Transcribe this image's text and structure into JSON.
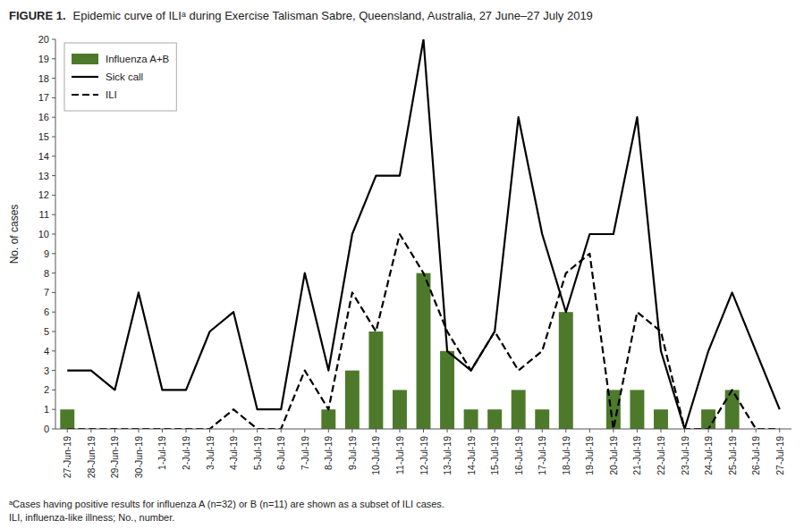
{
  "chart_data": {
    "type": "bar",
    "title": "FIGURE 1.",
    "subtitle": "Epidemic curve of ILIᵃ during Exercise Talisman Sabre, Queensland, Australia, 27 June–27 July 2019",
    "annotations": [
      "ᵃCases having positive results for influenza A (n=32) or B (n=11) are shown as a subset of ILI cases.",
      "ILI, influenza-like illness; No., number."
    ],
    "ylabel": "No. of cases",
    "categories": [
      "27-Jun-19",
      "28-Jun-19",
      "29-Jun-19",
      "30-Jun-19",
      "1-Jul-19",
      "2-Jul-19",
      "3-Jul-19",
      "4-Jul-19",
      "5-Jul-19",
      "6-Jul-19",
      "7-Jul-19",
      "8-Jul-19",
      "9-Jul-19",
      "10-Jul-19",
      "11-Jul-19",
      "12-Jul-19",
      "13-Jul-19",
      "14-Jul-19",
      "15-Jul-19",
      "16-Jul-19",
      "17-Jul-19",
      "18-Jul-19",
      "19-Jul-19",
      "20-Jul-19",
      "21-Jul-19",
      "22-Jul-19",
      "23-Jul-19",
      "24-Jul-19",
      "25-Jul-19",
      "26-Jul-19",
      "27-Jul-19"
    ],
    "series": [
      {
        "name": "Influenza A+B",
        "type": "bar",
        "color": "#4d7a2a",
        "values": [
          1,
          0,
          0,
          0,
          0,
          0,
          0,
          0,
          0,
          0,
          0,
          1,
          3,
          5,
          2,
          8,
          4,
          1,
          1,
          2,
          1,
          6,
          0,
          2,
          2,
          1,
          0,
          1,
          2,
          0,
          0
        ]
      },
      {
        "name": "Sick call",
        "type": "line",
        "color": "#000000",
        "line_style": "solid",
        "values": [
          3,
          3,
          2,
          7,
          2,
          2,
          5,
          6,
          1,
          1,
          8,
          3,
          10,
          13,
          13,
          20,
          4,
          3,
          5,
          16,
          10,
          6,
          10,
          10,
          16,
          4,
          0,
          4,
          7,
          4,
          1
        ]
      },
      {
        "name": "ILI",
        "type": "line",
        "color": "#000000",
        "line_style": "dashed",
        "values": [
          0,
          0,
          0,
          0,
          0,
          0,
          0,
          1,
          0,
          0,
          3,
          1,
          7,
          5,
          10,
          8,
          5,
          3,
          5,
          3,
          4,
          8,
          9,
          0,
          6,
          5,
          0,
          0,
          2,
          0,
          0
        ]
      }
    ],
    "ylim": [
      0,
      20
    ],
    "yticks": [
      0,
      1,
      2,
      3,
      4,
      5,
      6,
      7,
      8,
      9,
      10,
      11,
      12,
      13,
      14,
      15,
      16,
      17,
      18,
      19,
      20
    ],
    "grid": false,
    "legend": "upper left"
  }
}
